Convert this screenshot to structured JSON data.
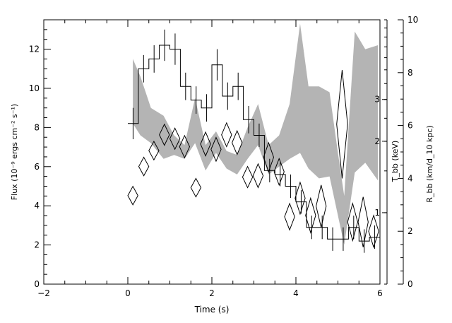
{
  "chart_data": {
    "type": "line",
    "xlabel": "Time (s)",
    "ylabel_left": "Flux (10⁻⁹ ergs cm⁻² s⁻¹)",
    "ylabel_right_inner": "T_bb (keV)",
    "ylabel_right_outer": "R_bb (km/d_10 kpc)",
    "xlim": [
      -2,
      6
    ],
    "ylim_flux": [
      0,
      13.5
    ],
    "ylim_R": [
      0,
      10
    ],
    "x_ticks": [
      "−2",
      "0",
      "2",
      "4",
      "6"
    ],
    "y_ticks_flux": [
      "0",
      "2",
      "4",
      "6",
      "8",
      "10",
      "12"
    ],
    "T_ticks": [
      "1",
      "2",
      "3"
    ],
    "R_ticks": [
      "0",
      "2",
      "4",
      "6",
      "8",
      "10"
    ],
    "grid": false,
    "series": [
      {
        "kind": "flux-histogram",
        "color": "#000000",
        "points": [
          {
            "x0": 0.0,
            "x1": 0.25,
            "y": 8.2,
            "err": 0.8
          },
          {
            "x0": 0.25,
            "x1": 0.5,
            "y": 11.0,
            "err": 0.7
          },
          {
            "x0": 0.5,
            "x1": 0.75,
            "y": 11.5,
            "err": 0.7
          },
          {
            "x0": 0.75,
            "x1": 1.0,
            "y": 12.2,
            "err": 0.8
          },
          {
            "x0": 1.0,
            "x1": 1.25,
            "y": 12.0,
            "err": 0.8
          },
          {
            "x0": 1.25,
            "x1": 1.5,
            "y": 10.1,
            "err": 0.7
          },
          {
            "x0": 1.5,
            "x1": 1.75,
            "y": 9.4,
            "err": 0.7
          },
          {
            "x0": 1.75,
            "x1": 2.0,
            "y": 9.0,
            "err": 0.7
          },
          {
            "x0": 2.0,
            "x1": 2.25,
            "y": 11.2,
            "err": 0.8
          },
          {
            "x0": 2.25,
            "x1": 2.5,
            "y": 9.6,
            "err": 0.7
          },
          {
            "x0": 2.5,
            "x1": 2.75,
            "y": 10.1,
            "err": 0.7
          },
          {
            "x0": 2.75,
            "x1": 3.0,
            "y": 8.4,
            "err": 0.7
          },
          {
            "x0": 3.0,
            "x1": 3.25,
            "y": 7.6,
            "err": 0.6
          },
          {
            "x0": 3.25,
            "x1": 3.5,
            "y": 5.8,
            "err": 0.6
          },
          {
            "x0": 3.5,
            "x1": 3.75,
            "y": 5.6,
            "err": 0.6
          },
          {
            "x0": 3.75,
            "x1": 4.0,
            "y": 5.0,
            "err": 0.6
          },
          {
            "x0": 4.0,
            "x1": 4.25,
            "y": 4.2,
            "err": 0.6
          },
          {
            "x0": 4.25,
            "x1": 4.5,
            "y": 2.9,
            "err": 0.6
          },
          {
            "x0": 4.5,
            "x1": 4.75,
            "y": 2.9,
            "err": 0.6
          },
          {
            "x0": 4.75,
            "x1": 5.0,
            "y": 2.3,
            "err": 0.6
          },
          {
            "x0": 5.0,
            "x1": 5.25,
            "y": 2.3,
            "err": 0.6
          },
          {
            "x0": 5.25,
            "x1": 5.5,
            "y": 2.9,
            "err": 0.6
          },
          {
            "x0": 5.5,
            "x1": 5.75,
            "y": 2.2,
            "err": 0.6
          },
          {
            "x0": 5.75,
            "x1": 6.0,
            "y": 2.4,
            "err": 0.6
          }
        ]
      },
      {
        "kind": "temperature-band",
        "color": "#b4b4b4",
        "points": [
          {
            "x": 0.12,
            "lo": 8.2,
            "hi": 11.5
          },
          {
            "x": 0.3,
            "lo": 7.6,
            "hi": 10.6
          },
          {
            "x": 0.55,
            "lo": 7.2,
            "hi": 9.0
          },
          {
            "x": 0.85,
            "lo": 6.4,
            "hi": 8.6
          },
          {
            "x": 1.1,
            "lo": 6.6,
            "hi": 7.6
          },
          {
            "x": 1.35,
            "lo": 6.4,
            "hi": 7.1
          },
          {
            "x": 1.6,
            "lo": 7.2,
            "hi": 9.5
          },
          {
            "x": 1.85,
            "lo": 5.8,
            "hi": 7.1
          },
          {
            "x": 2.1,
            "lo": 6.7,
            "hi": 7.8
          },
          {
            "x": 2.35,
            "lo": 5.9,
            "hi": 6.8
          },
          {
            "x": 2.6,
            "lo": 5.6,
            "hi": 6.6
          },
          {
            "x": 2.85,
            "lo": 6.4,
            "hi": 8.0
          },
          {
            "x": 3.1,
            "lo": 7.1,
            "hi": 9.2
          },
          {
            "x": 3.35,
            "lo": 5.6,
            "hi": 7.1
          },
          {
            "x": 3.6,
            "lo": 6.0,
            "hi": 7.6
          },
          {
            "x": 3.85,
            "lo": 6.4,
            "hi": 9.2
          },
          {
            "x": 4.1,
            "lo": 6.7,
            "hi": 13.3
          },
          {
            "x": 4.3,
            "lo": 5.9,
            "hi": 10.1
          },
          {
            "x": 4.55,
            "lo": 5.4,
            "hi": 10.1
          },
          {
            "x": 4.8,
            "lo": 5.5,
            "hi": 9.8
          },
          {
            "x": 5.0,
            "lo": 3.5,
            "hi": 6.7
          },
          {
            "x": 5.15,
            "lo": 2.0,
            "hi": 4.5
          },
          {
            "x": 5.4,
            "lo": 5.7,
            "hi": 12.9
          },
          {
            "x": 5.65,
            "lo": 6.2,
            "hi": 12.0
          },
          {
            "x": 5.95,
            "lo": 5.3,
            "hi": 12.2
          }
        ]
      },
      {
        "kind": "radius-diamonds",
        "color": "#000000",
        "points": [
          {
            "x": 0.12,
            "y": 3.35,
            "hw": 0.12,
            "hh": 0.35
          },
          {
            "x": 0.38,
            "y": 4.45,
            "hw": 0.12,
            "hh": 0.35
          },
          {
            "x": 0.62,
            "y": 5.05,
            "hw": 0.12,
            "hh": 0.35
          },
          {
            "x": 0.87,
            "y": 5.65,
            "hw": 0.12,
            "hh": 0.4
          },
          {
            "x": 1.12,
            "y": 5.5,
            "hw": 0.12,
            "hh": 0.4
          },
          {
            "x": 1.35,
            "y": 5.2,
            "hw": 0.12,
            "hh": 0.42
          },
          {
            "x": 1.62,
            "y": 3.65,
            "hw": 0.12,
            "hh": 0.35
          },
          {
            "x": 1.85,
            "y": 5.3,
            "hw": 0.12,
            "hh": 0.45
          },
          {
            "x": 2.1,
            "y": 5.1,
            "hw": 0.12,
            "hh": 0.45
          },
          {
            "x": 2.35,
            "y": 5.65,
            "hw": 0.12,
            "hh": 0.45
          },
          {
            "x": 2.6,
            "y": 5.35,
            "hw": 0.12,
            "hh": 0.45
          },
          {
            "x": 2.85,
            "y": 4.05,
            "hw": 0.12,
            "hh": 0.4
          },
          {
            "x": 3.1,
            "y": 4.1,
            "hw": 0.12,
            "hh": 0.45
          },
          {
            "x": 3.35,
            "y": 4.8,
            "hw": 0.12,
            "hh": 0.55
          },
          {
            "x": 3.6,
            "y": 4.25,
            "hw": 0.12,
            "hh": 0.5
          },
          {
            "x": 3.85,
            "y": 2.55,
            "hw": 0.12,
            "hh": 0.5
          },
          {
            "x": 4.1,
            "y": 3.25,
            "hw": 0.12,
            "hh": 0.6
          },
          {
            "x": 4.35,
            "y": 2.6,
            "hw": 0.12,
            "hh": 0.65
          },
          {
            "x": 4.6,
            "y": 2.95,
            "hw": 0.12,
            "hh": 0.8
          },
          {
            "x": 5.1,
            "y": 6.05,
            "hw": 0.13,
            "hh": 2.05
          },
          {
            "x": 5.35,
            "y": 2.35,
            "hw": 0.12,
            "hh": 0.7
          },
          {
            "x": 5.6,
            "y": 2.35,
            "hw": 0.12,
            "hh": 0.95
          },
          {
            "x": 5.85,
            "y": 2.0,
            "hw": 0.12,
            "hh": 0.6
          }
        ]
      }
    ]
  }
}
